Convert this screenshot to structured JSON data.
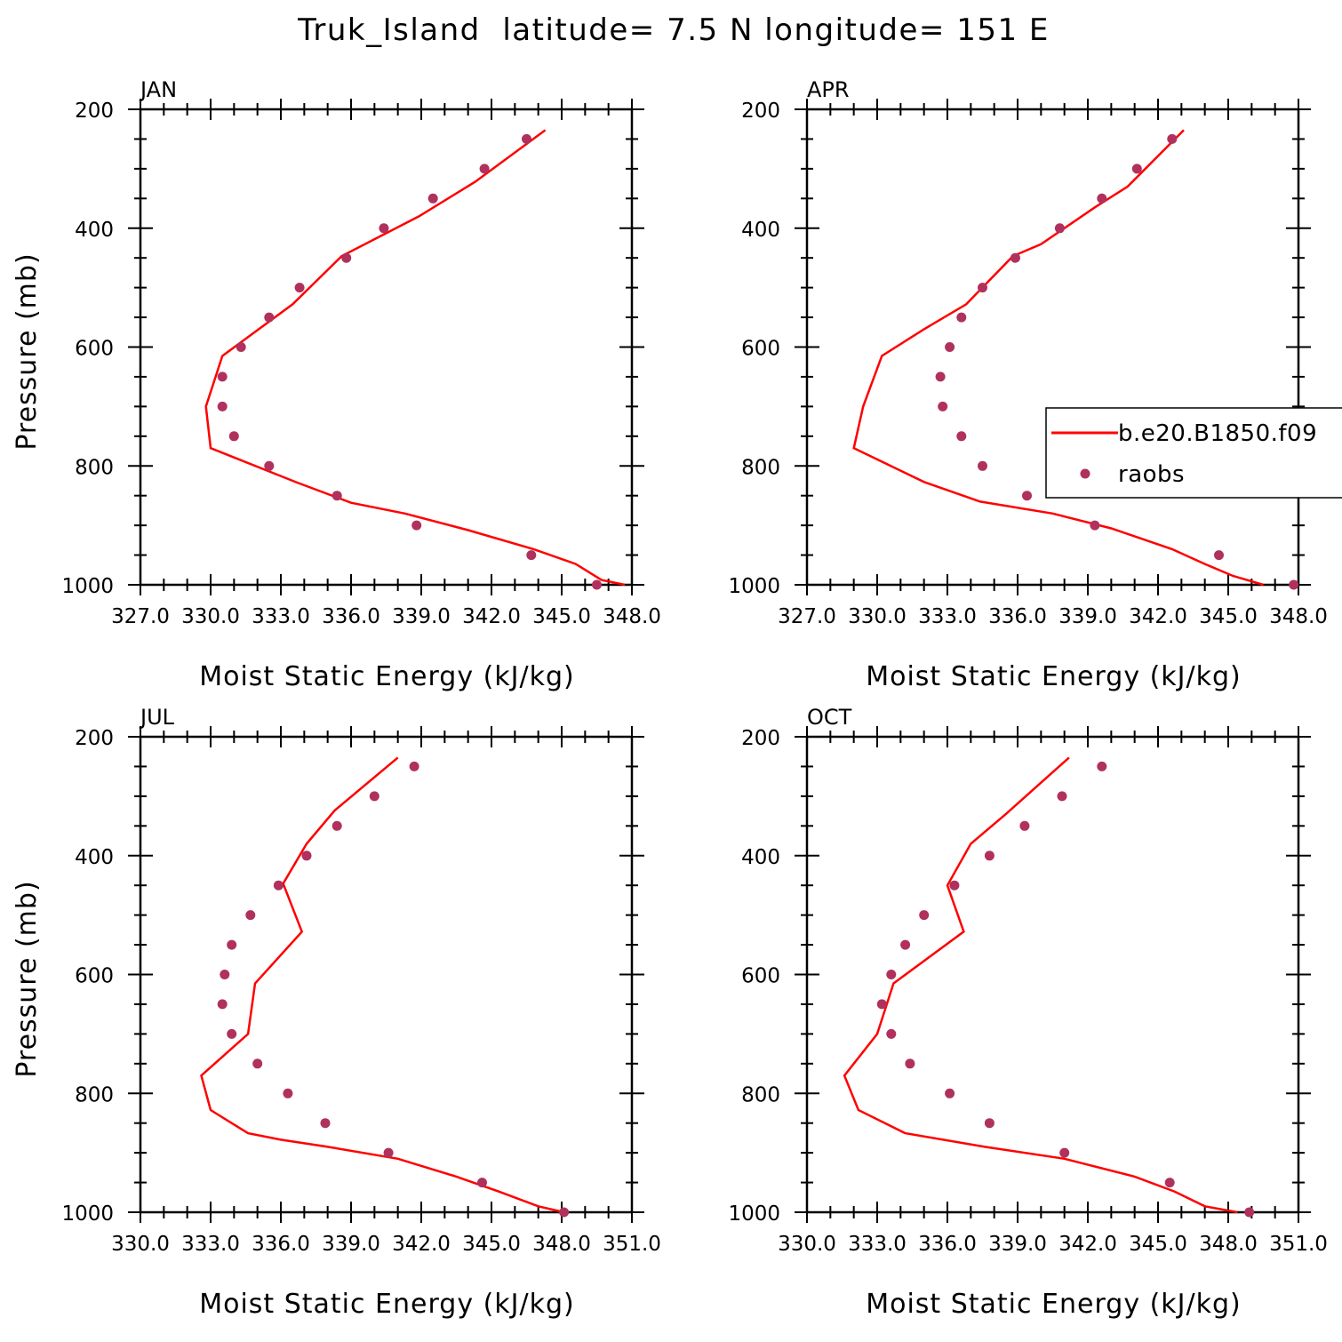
{
  "title": "Truk_Island  latitude= 7.5 N longitude= 151 E",
  "colors": {
    "model": "#ff0000",
    "obs": "#b0305e",
    "axis": "#000000",
    "background": "#ffffff"
  },
  "legend": {
    "entries": [
      "b.e20.B1850.f09",
      "raobs"
    ],
    "placement": "middle-right of APR panel, clipped at right edge"
  },
  "chart_data": [
    {
      "type": "line",
      "panel": "JAN",
      "xlabel": "Moist Static Energy (kJ/kg)",
      "ylabel": "Pressure (mb)",
      "xlim": [
        327,
        348
      ],
      "ylim": [
        1000,
        200
      ],
      "y_inverted": true,
      "x_tick_labels": [
        "327.0",
        "330.0",
        "333.0",
        "336.0",
        "339.0",
        "342.0",
        "345.0",
        "348.0"
      ],
      "y_tick_labels": [
        "200",
        "400",
        "600",
        "800",
        "1000"
      ],
      "series": [
        {
          "name": "b.e20.B1850.f09",
          "style": "line",
          "points": [
            [
              347.7,
              1000
            ],
            [
              346.7,
              992
            ],
            [
              345.6,
              965
            ],
            [
              343.8,
              940
            ],
            [
              341.0,
              908
            ],
            [
              338.3,
              880
            ],
            [
              336.0,
              862
            ],
            [
              333.7,
              828
            ],
            [
              330.0,
              770
            ],
            [
              329.8,
              700
            ],
            [
              330.5,
              615
            ],
            [
              333.5,
              528
            ],
            [
              335.6,
              447
            ],
            [
              338.9,
              380
            ],
            [
              341.3,
              322
            ],
            [
              344.3,
              235
            ]
          ]
        },
        {
          "name": "raobs",
          "style": "markers",
          "points": [
            [
              346.5,
              1000
            ],
            [
              343.7,
              950
            ],
            [
              338.8,
              900
            ],
            [
              335.4,
              850
            ],
            [
              332.5,
              800
            ],
            [
              331.0,
              750
            ],
            [
              330.5,
              700
            ],
            [
              330.5,
              650
            ],
            [
              331.3,
              600
            ],
            [
              332.5,
              550
            ],
            [
              333.8,
              500
            ],
            [
              335.8,
              450
            ],
            [
              337.4,
              400
            ],
            [
              339.5,
              350
            ],
            [
              341.7,
              300
            ],
            [
              343.5,
              250
            ]
          ]
        }
      ]
    },
    {
      "type": "line",
      "panel": "APR",
      "xlabel": "Moist Static Energy (kJ/kg)",
      "ylabel": "",
      "xlim": [
        327,
        348
      ],
      "ylim": [
        1000,
        200
      ],
      "y_inverted": true,
      "x_tick_labels": [
        "327.0",
        "330.0",
        "333.0",
        "336.0",
        "339.0",
        "342.0",
        "345.0",
        "348.0"
      ],
      "y_tick_labels": [
        "200",
        "400",
        "600",
        "800",
        "1000"
      ],
      "series": [
        {
          "name": "b.e20.B1850.f09",
          "style": "line",
          "points": [
            [
              346.5,
              1000
            ],
            [
              345.2,
              985
            ],
            [
              344.0,
              965
            ],
            [
              342.6,
              940
            ],
            [
              340.0,
              905
            ],
            [
              337.5,
              880
            ],
            [
              334.4,
              860
            ],
            [
              332.0,
              827
            ],
            [
              329.0,
              770
            ],
            [
              329.4,
              700
            ],
            [
              330.2,
              615
            ],
            [
              332.0,
              570
            ],
            [
              333.8,
              528
            ],
            [
              335.8,
              447
            ],
            [
              337.0,
              427
            ],
            [
              339.3,
              365
            ],
            [
              340.7,
              330
            ],
            [
              343.1,
              235
            ]
          ]
        },
        {
          "name": "raobs",
          "style": "markers",
          "points": [
            [
              347.8,
              1000
            ],
            [
              344.6,
              950
            ],
            [
              339.3,
              900
            ],
            [
              336.4,
              850
            ],
            [
              334.5,
              800
            ],
            [
              333.6,
              750
            ],
            [
              332.8,
              700
            ],
            [
              332.7,
              650
            ],
            [
              333.1,
              600
            ],
            [
              333.6,
              550
            ],
            [
              334.5,
              500
            ],
            [
              335.9,
              450
            ],
            [
              337.8,
              400
            ],
            [
              339.6,
              350
            ],
            [
              341.1,
              300
            ],
            [
              342.6,
              250
            ]
          ]
        }
      ]
    },
    {
      "type": "line",
      "panel": "JUL",
      "xlabel": "Moist Static Energy (kJ/kg)",
      "ylabel": "Pressure (mb)",
      "xlim": [
        330,
        351
      ],
      "ylim": [
        1000,
        200
      ],
      "y_inverted": true,
      "x_tick_labels": [
        "330.0",
        "333.0",
        "336.0",
        "339.0",
        "342.0",
        "345.0",
        "348.0",
        "351.0"
      ],
      "y_tick_labels": [
        "200",
        "400",
        "600",
        "800",
        "1000"
      ],
      "series": [
        {
          "name": "b.e20.B1850.f09",
          "style": "line",
          "points": [
            [
              348.1,
              1000
            ],
            [
              347.0,
              990
            ],
            [
              345.3,
              965
            ],
            [
              343.5,
              940
            ],
            [
              341.0,
              910
            ],
            [
              338.0,
              890
            ],
            [
              336.0,
              878
            ],
            [
              334.6,
              867
            ],
            [
              333.0,
              828
            ],
            [
              332.6,
              770
            ],
            [
              334.6,
              700
            ],
            [
              334.9,
              615
            ],
            [
              336.9,
              528
            ],
            [
              336.1,
              447
            ],
            [
              337.1,
              380
            ],
            [
              338.3,
              324
            ],
            [
              341.0,
              235
            ]
          ]
        },
        {
          "name": "raobs",
          "style": "markers",
          "points": [
            [
              348.1,
              1000
            ],
            [
              344.6,
              950
            ],
            [
              340.6,
              900
            ],
            [
              337.9,
              850
            ],
            [
              336.3,
              800
            ],
            [
              335.0,
              750
            ],
            [
              333.9,
              700
            ],
            [
              333.5,
              650
            ],
            [
              333.6,
              600
            ],
            [
              333.9,
              550
            ],
            [
              334.7,
              500
            ],
            [
              335.9,
              450
            ],
            [
              337.1,
              400
            ],
            [
              338.4,
              350
            ],
            [
              340.0,
              300
            ],
            [
              341.7,
              250
            ]
          ]
        }
      ]
    },
    {
      "type": "line",
      "panel": "OCT",
      "xlabel": "Moist Static Energy (kJ/kg)",
      "ylabel": "",
      "xlim": [
        330,
        351
      ],
      "ylim": [
        1000,
        200
      ],
      "y_inverted": true,
      "x_tick_labels": [
        "330.0",
        "333.0",
        "336.0",
        "339.0",
        "342.0",
        "345.0",
        "348.0",
        "351.0"
      ],
      "y_tick_labels": [
        "200",
        "400",
        "600",
        "800",
        "1000"
      ],
      "series": [
        {
          "name": "b.e20.B1850.f09",
          "style": "line",
          "points": [
            [
              348.4,
              1000
            ],
            [
              347.0,
              990
            ],
            [
              345.7,
              965
            ],
            [
              344.0,
              940
            ],
            [
              341.0,
              910
            ],
            [
              337.6,
              890
            ],
            [
              334.2,
              867
            ],
            [
              332.2,
              828
            ],
            [
              331.6,
              770
            ],
            [
              333.0,
              700
            ],
            [
              333.7,
              615
            ],
            [
              336.7,
              528
            ],
            [
              336.0,
              450
            ],
            [
              337.0,
              380
            ],
            [
              338.5,
              330
            ],
            [
              341.2,
              235
            ]
          ]
        },
        {
          "name": "raobs",
          "style": "markers",
          "points": [
            [
              348.9,
              1000
            ],
            [
              345.5,
              950
            ],
            [
              341.0,
              900
            ],
            [
              337.8,
              850
            ],
            [
              336.1,
              800
            ],
            [
              334.4,
              750
            ],
            [
              333.6,
              700
            ],
            [
              333.2,
              650
            ],
            [
              333.6,
              600
            ],
            [
              334.2,
              550
            ],
            [
              335.0,
              500
            ],
            [
              336.3,
              450
            ],
            [
              337.8,
              400
            ],
            [
              339.3,
              350
            ],
            [
              340.9,
              300
            ],
            [
              342.6,
              250
            ]
          ]
        }
      ]
    }
  ]
}
